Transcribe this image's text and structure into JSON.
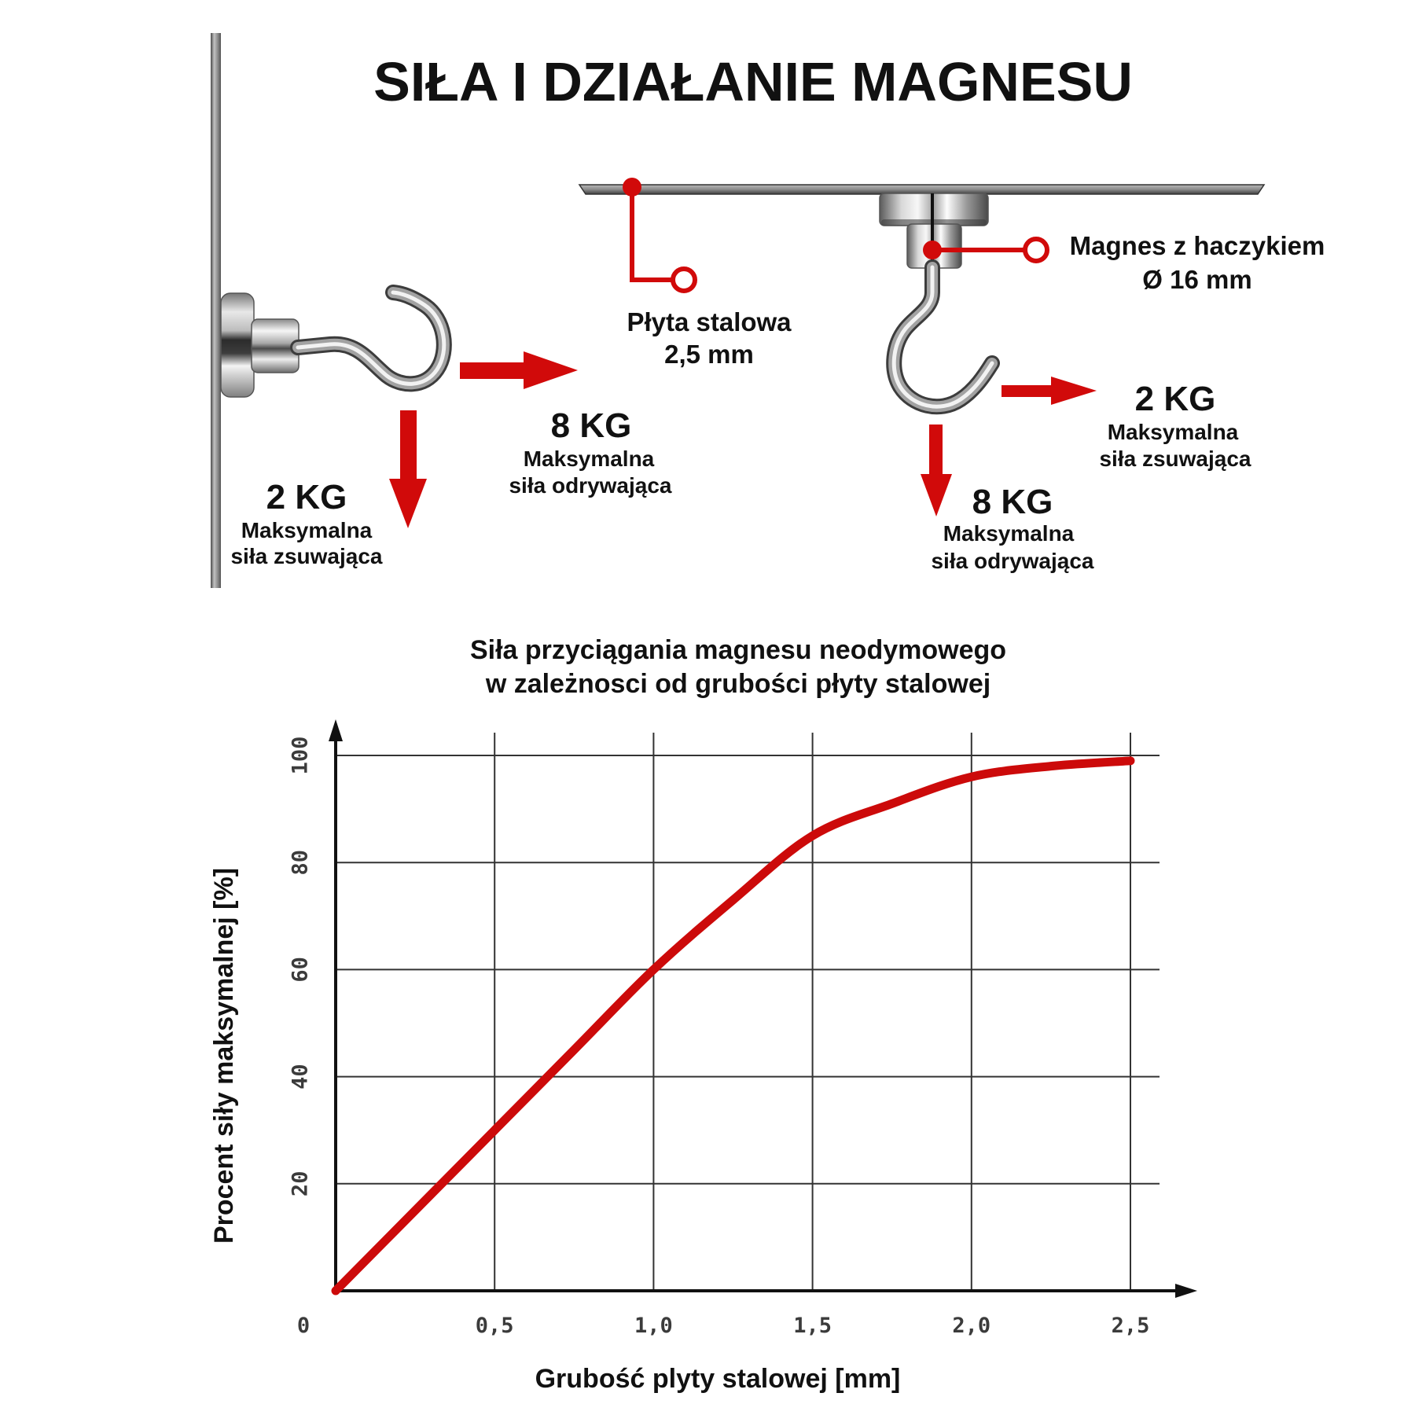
{
  "title": "SIŁA I DZIAŁANIE MAGNESU",
  "wall_mount": {
    "slide_force": {
      "value": "2 KG",
      "line1": "Maksymalna",
      "line2": "siła zsuwająca"
    },
    "pull_force": {
      "value": "8 KG",
      "line1": "Maksymalna",
      "line2": "siła odrywająca"
    }
  },
  "ceiling_mount": {
    "plate_label": {
      "line1": "Płyta stalowa",
      "line2": "2,5 mm"
    },
    "magnet_label": {
      "line1": "Magnes z haczykiem",
      "line2": "Ø 16 mm"
    },
    "slide_force": {
      "value": "2 KG",
      "line1": "Maksymalna",
      "line2": "siła zsuwająca"
    },
    "pull_force": {
      "value": "8 KG",
      "line1": "Maksymalna",
      "line2": "siła odrywająca"
    }
  },
  "colors": {
    "accent": "#d10a0a",
    "text": "#111111",
    "grid": "#333333"
  },
  "chart_data": {
    "type": "line",
    "title_lines": [
      "Siła przyciągania magnesu neodymowego",
      "w zależnosci od grubości płyty stalowej"
    ],
    "xlabel": "Grubość plyty stalowej [mm]",
    "ylabel": "Procent siły maksymalnej [%]",
    "xlim": [
      0,
      2.5
    ],
    "ylim": [
      0,
      100
    ],
    "grid": true,
    "origin_label": "0",
    "x_ticks": [
      {
        "value": 0.5,
        "label": "0,5"
      },
      {
        "value": 1.0,
        "label": "1,0"
      },
      {
        "value": 1.5,
        "label": "1,5"
      },
      {
        "value": 2.0,
        "label": "2,0"
      },
      {
        "value": 2.5,
        "label": "2,5"
      }
    ],
    "y_ticks": [
      {
        "value": 20,
        "label": "20"
      },
      {
        "value": 40,
        "label": "40"
      },
      {
        "value": 60,
        "label": "60"
      },
      {
        "value": 80,
        "label": "80"
      },
      {
        "value": 100,
        "label": "100"
      }
    ],
    "series": [
      {
        "color": "#cc0a0a",
        "x": [
          0,
          0.25,
          0.5,
          0.75,
          1.0,
          1.25,
          1.5,
          1.75,
          2.0,
          2.25,
          2.5
        ],
        "y": [
          0,
          15,
          30,
          45,
          60,
          73,
          85,
          91,
          96,
          98,
          99
        ]
      }
    ]
  }
}
